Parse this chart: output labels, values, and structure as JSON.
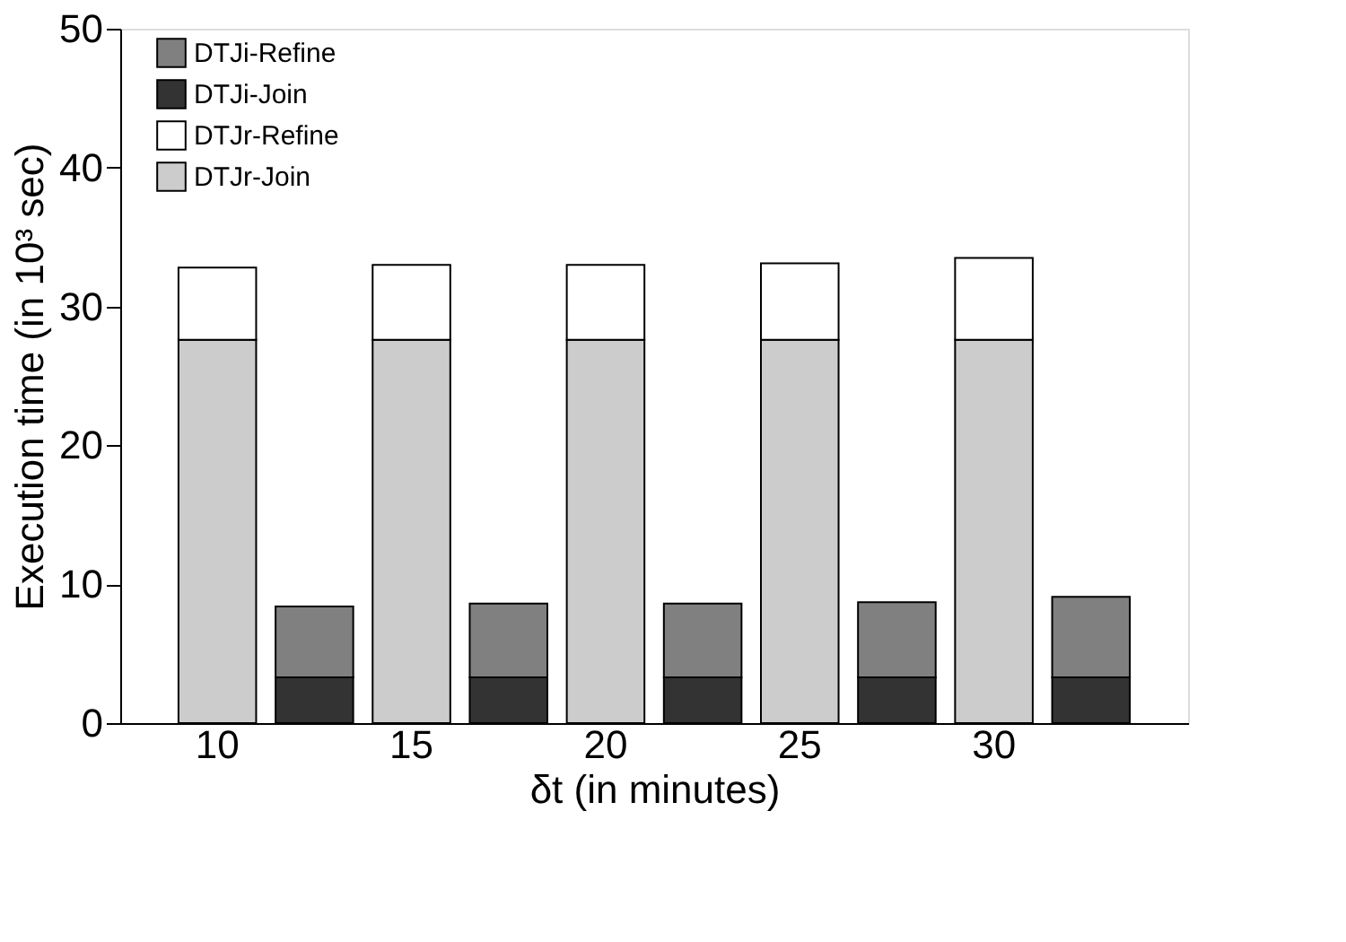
{
  "chart_data": {
    "type": "bar",
    "stacked": true,
    "xlabel": "δt (in minutes)",
    "ylabel": "Execution time (in 10³ sec)",
    "categories": [
      "10",
      null,
      "15",
      null,
      "20",
      null,
      "25",
      null,
      "30",
      null
    ],
    "series": [
      {
        "name": "DTJr-Join",
        "color": "#cccccc",
        "values": [
          27.6,
          null,
          27.6,
          null,
          27.6,
          null,
          27.6,
          null,
          27.6,
          null
        ]
      },
      {
        "name": "DTJr-Refine",
        "color": "#ffffff",
        "values": [
          5.2,
          null,
          5.4,
          null,
          5.4,
          null,
          5.5,
          null,
          5.9,
          null
        ]
      },
      {
        "name": "DTJi-Join",
        "color": "#333333",
        "values": [
          null,
          3.3,
          null,
          3.3,
          null,
          3.3,
          null,
          3.3,
          null,
          3.3
        ]
      },
      {
        "name": "DTJi-Refine",
        "color": "#808080",
        "values": [
          null,
          5.1,
          null,
          5.3,
          null,
          5.3,
          null,
          5.4,
          null,
          5.8
        ]
      }
    ],
    "ylim": [
      0,
      50
    ],
    "yticks": [
      0,
      10,
      20,
      30,
      40,
      50
    ],
    "grid": false,
    "legend": "top left"
  }
}
